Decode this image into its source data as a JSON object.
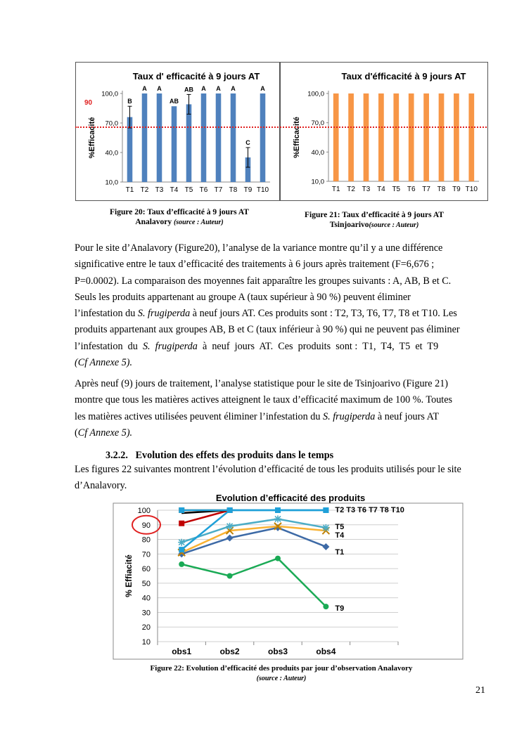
{
  "figure20": {
    "chart_data": {
      "type": "bar",
      "title": "Taux d' efficacité à 9 jours AT",
      "ylabel": "%Efficacité",
      "categories": [
        "T1",
        "T2",
        "T3",
        "T4",
        "T5",
        "T6",
        "T7",
        "T8",
        "T9",
        "T10"
      ],
      "values": [
        76,
        100,
        100,
        87,
        89,
        100,
        100,
        100,
        35,
        100
      ],
      "errors": [
        11,
        0,
        0,
        0,
        10,
        0,
        0,
        0,
        10,
        0
      ],
      "groups": [
        "B",
        "A",
        "A",
        "AB",
        "AB",
        "A",
        "A",
        "A",
        "C",
        "A"
      ],
      "ylim": [
        10,
        100
      ],
      "yticks": [
        "10,0",
        "40,0",
        "70,0",
        "100,0"
      ],
      "threshold": 90,
      "threshold_label": "90",
      "color": "#4f81bd"
    },
    "caption": "Figure 20: Taux d’efficacité à 9 jours AT",
    "caption2": "Analavory",
    "source": "(source : Auteur)"
  },
  "figure21": {
    "chart_data": {
      "type": "bar",
      "title": "Taux d'éfficacité à 9 jours AT",
      "ylabel": "%Efficacité",
      "categories": [
        "T1",
        "T2",
        "T3",
        "T4",
        "T5",
        "T6",
        "T7",
        "T8",
        "T9",
        "T10"
      ],
      "values": [
        100,
        100,
        100,
        100,
        100,
        100,
        100,
        100,
        100,
        100
      ],
      "ylim": [
        10,
        100
      ],
      "yticks": [
        "10,0",
        "40,0",
        "70,0",
        "100,0"
      ],
      "color": "#f79646"
    },
    "caption": "Figure 21: Taux d’efficacité à 9 jours AT",
    "caption2": "Tsinjoarivo",
    "source": "(source : Auteur)"
  },
  "paragraph1": {
    "line1": "Pour le site d’Analavory (Figure20), l’analyse de la variance montre qu’il y a une différence",
    "line2": "significative entre le taux d’efficacité des traitements à 6 jours après traitement (F=6,676 ;",
    "line3": "P=0.0002). La comparaison des moyennes fait apparaître les groupes suivants : A, AB, B et C.",
    "line4": "Seuls les produits appartenant au groupe A (taux supérieur à 90 %) peuvent éliminer",
    "line5a": "l’infestation  du ",
    "line5b": "S. frugiperda",
    "line5c": " à neuf jours AT. Ces produits sont : T2, T3, T6, T7, T8 et T10. Les",
    "line6": "produits appartenant aux groupes AB, B et C (taux inférieur à 90 %) qui ne peuvent pas éliminer",
    "line7a": "l’infestation  du  ",
    "line7b": "S.  frugiperda",
    "line7c": "  à  neuf  jours  AT.  Ces  produits  sont :  T1,  T4,  T5  et  T9",
    "line8": "(Cf Annexe 5)."
  },
  "paragraph2": {
    "line1": "Après neuf (9) jours de traitement, l’analyse statistique pour le site de Tsinjoarivo (Figure 21)",
    "line2": "montre que tous les matières actives atteignent le taux d’efficacité maximum de 100 %. Toutes",
    "line3a": "les matières actives utilisées peuvent éliminer l’infestation du ",
    "line3b": "S. frugiperda",
    "line3c": " à neuf jours AT",
    "line4a": "(",
    "line4b": "Cf Annexe 5).",
    "line4c": ""
  },
  "section": {
    "number": "3.2.2.",
    "title": "Evolution des effets des produits dans le temps"
  },
  "paragraph3": {
    "line1": "Les figures 22 suivantes montrent l’évolution d’efficacité de tous les produits utilisés pour le site",
    "line2": "d’Analavory."
  },
  "figure22": {
    "chart_data": {
      "type": "line",
      "title": "Evolution d’efficacité des produits",
      "ylabel": "% Effiacité",
      "categories": [
        "obs1",
        "obs2",
        "obs3",
        "obs4"
      ],
      "ylim": [
        10,
        100
      ],
      "yticks": [
        "10",
        "20",
        "30",
        "40",
        "50",
        "60",
        "70",
        "80",
        "90",
        "100"
      ],
      "series": [
        {
          "name": "T2 T3  T6 T7 T8 T10",
          "values": [
            100,
            100,
            100,
            100
          ],
          "color": "#1fa0d8",
          "marker": "square"
        },
        {
          "name": "",
          "values": [
            100,
            100,
            null,
            null
          ],
          "color": "#e46c0a",
          "marker": "square"
        },
        {
          "name": "",
          "values": [
            98,
            100,
            null,
            null
          ],
          "color": "#000000",
          "marker": "none"
        },
        {
          "name": "",
          "values": [
            91,
            100,
            null,
            null
          ],
          "color": "#c00000",
          "marker": "square"
        },
        {
          "name": "",
          "values": [
            73,
            100,
            100,
            100
          ],
          "color": "#1fa0d8",
          "marker": "square"
        },
        {
          "name": "T5",
          "values": [
            78,
            89,
            94,
            88
          ],
          "color": "#4bacc6",
          "marker": "star"
        },
        {
          "name": "T4",
          "values": [
            71,
            86,
            89,
            86
          ],
          "color": "#f9b233",
          "marker": "x"
        },
        {
          "name": "T1",
          "values": [
            70,
            81,
            88,
            75
          ],
          "color": "#3d6aa6",
          "marker": "diamond"
        },
        {
          "name": "T9",
          "values": [
            63,
            55,
            67,
            34
          ],
          "color": "#1aaa55",
          "marker": "circle"
        }
      ],
      "highlight_tick": "90"
    },
    "caption": "Figure 22: Evolution d’efficacité des produits  par jour d’observation Analavory",
    "source": "(source : Auteur)"
  },
  "page_number": "21"
}
